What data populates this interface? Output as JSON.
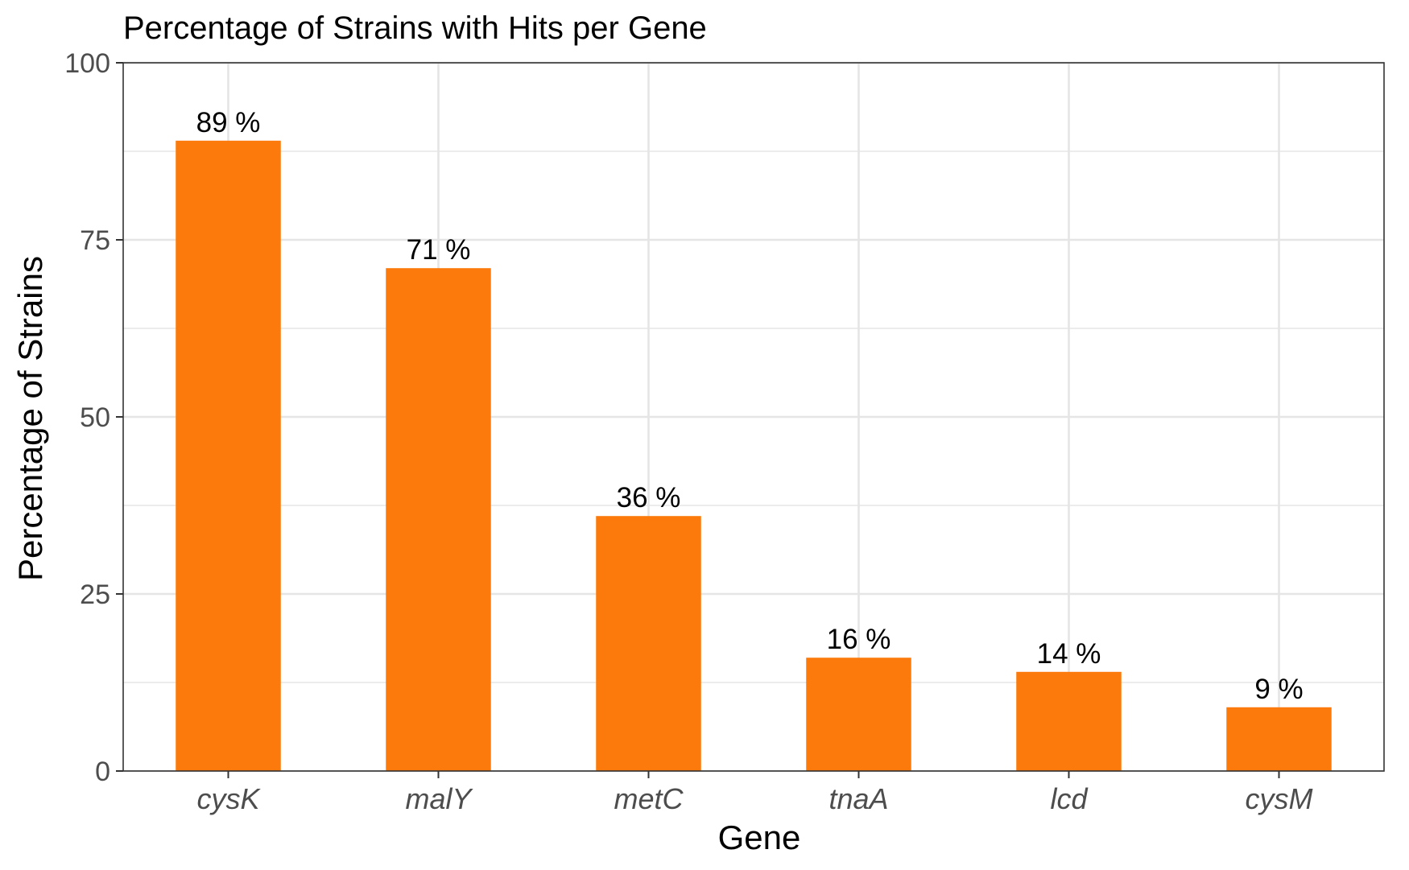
{
  "chart_data": {
    "type": "bar",
    "title": "Percentage of Strains with Hits per Gene",
    "xlabel": "Gene",
    "ylabel": "Percentage of Strains",
    "categories": [
      "cysK",
      "malY",
      "metC",
      "tnaA",
      "lcd",
      "cysM"
    ],
    "values": [
      89,
      71,
      36,
      16,
      14,
      9
    ],
    "data_labels": [
      "89 %",
      "71 %",
      "36 %",
      "16 %",
      "14 %",
      "9 %"
    ],
    "ylim": [
      0,
      100
    ],
    "yticks": [
      0,
      25,
      50,
      75,
      100
    ],
    "ytick_labels": [
      "0",
      "25",
      "50",
      "75",
      "100"
    ],
    "grid": true,
    "legend": "none",
    "bar_color": "#FC7A0C",
    "grid_color": "#E5E5E5",
    "axis_color": "#333333"
  }
}
